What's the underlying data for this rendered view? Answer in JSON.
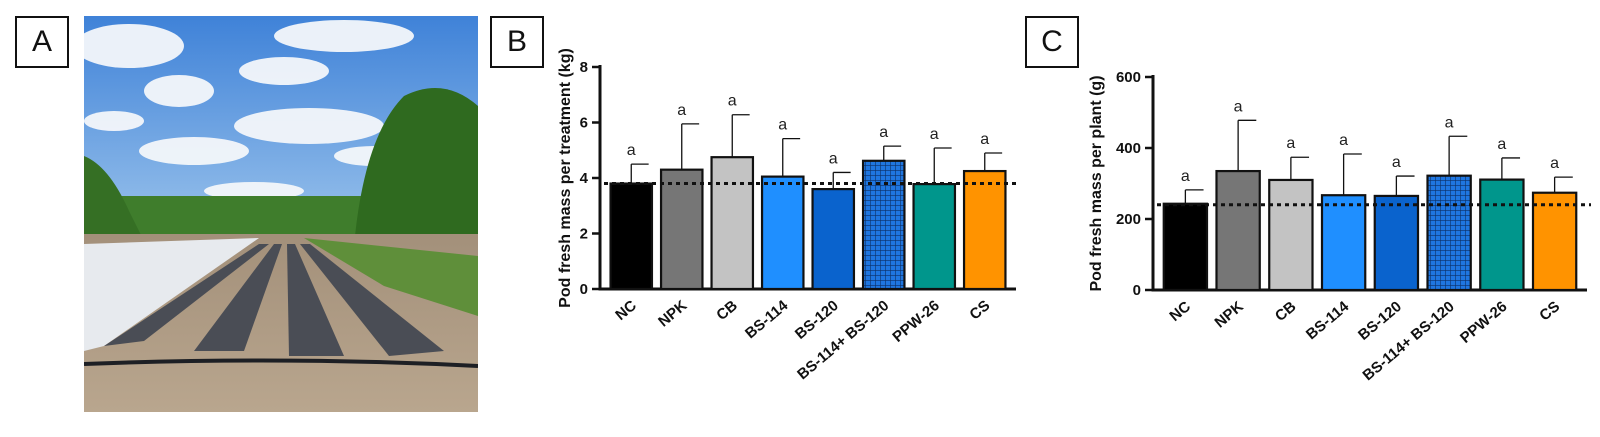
{
  "panels": {
    "a": "A",
    "b": "B",
    "c": "C"
  },
  "colors": {
    "NC": "#000000",
    "NPK": "#767676",
    "CB": "#c3c3c3",
    "BS-114": "#1f8fff",
    "BS-120": "#0a63cd",
    "BS-114+ BS-120": "#1f76e0",
    "PPW-26": "#00968c",
    "CS": "#ff9300"
  },
  "chart_data": [
    {
      "type": "bar",
      "panel": "B",
      "categories": [
        "NC",
        "NPK",
        "CB",
        "BS-114",
        "BS-120",
        "BS-114+ BS-120",
        "PPW-26",
        "CS"
      ],
      "values": [
        3.8,
        4.3,
        4.75,
        4.05,
        3.6,
        4.62,
        3.78,
        4.25
      ],
      "error_upper": [
        4.5,
        5.95,
        6.28,
        5.42,
        4.2,
        5.15,
        5.08,
        4.9
      ],
      "significance": [
        "a",
        "a",
        "a",
        "a",
        "a",
        "a",
        "a",
        "a"
      ],
      "ylabel": "Pod fresh mass per treatment (kg)",
      "ylim": [
        0,
        8
      ],
      "yticks": [
        0,
        2,
        4,
        6,
        8
      ],
      "reference_line": 3.8,
      "patterned_category": "BS-114+ BS-120"
    },
    {
      "type": "bar",
      "panel": "C",
      "categories": [
        "NC",
        "NPK",
        "CB",
        "BS-114",
        "BS-120",
        "BS-114+ BS-120",
        "PPW-26",
        "CS"
      ],
      "values": [
        243,
        335,
        310,
        267,
        265,
        322,
        311,
        274
      ],
      "error_upper": [
        282,
        478,
        374,
        383,
        321,
        433,
        372,
        318
      ],
      "significance": [
        "a",
        "a",
        "a",
        "a",
        "a",
        "a",
        "a",
        "a"
      ],
      "ylabel": "Pod fresh mass per plant (g)",
      "ylim": [
        0,
        600
      ],
      "yticks": [
        0,
        200,
        400,
        600
      ],
      "reference_line": 240,
      "patterned_category": "BS-114+ BS-120"
    }
  ]
}
